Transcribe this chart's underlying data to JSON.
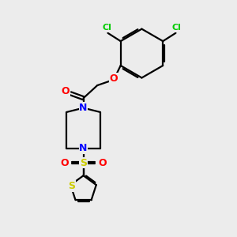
{
  "bg_color": "#ececec",
  "bond_color": "#000000",
  "N_color": "#0000ff",
  "O_color": "#ff0000",
  "S_color": "#cccc00",
  "Cl_color": "#00cc00",
  "line_width": 1.6,
  "figsize": [
    3.0,
    3.0
  ],
  "dpi": 100,
  "xlim": [
    0,
    10
  ],
  "ylim": [
    0,
    10
  ]
}
